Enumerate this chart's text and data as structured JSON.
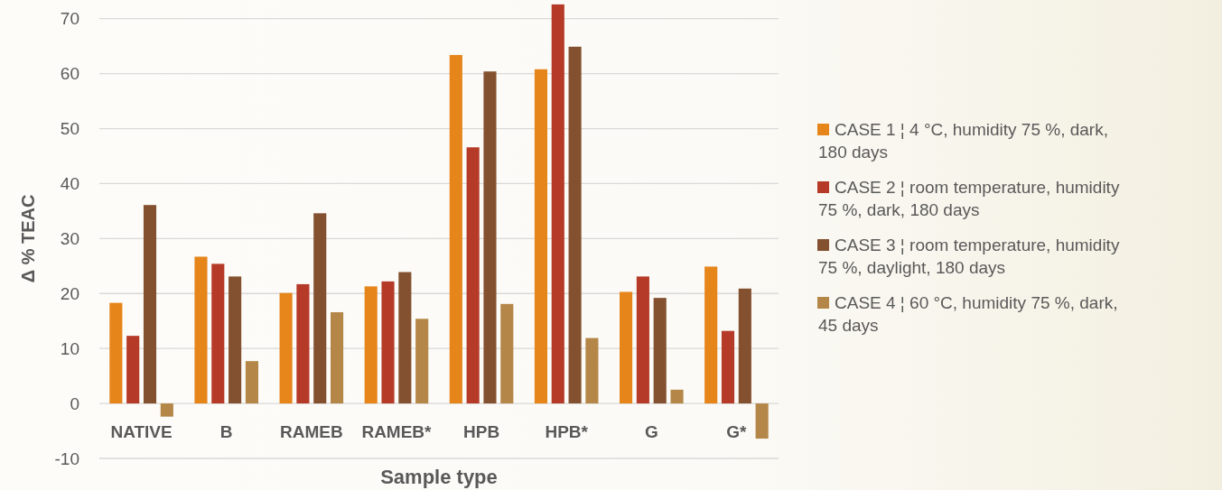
{
  "chart_data": {
    "type": "bar",
    "xlabel": "Sample type",
    "ylabel": "Δ % TEAC",
    "categories": [
      "NATIVE",
      "B",
      "RAMEB",
      "RAMEB*",
      "HPB",
      "HPB*",
      "G",
      "G*"
    ],
    "series": [
      {
        "name": "CASE 1 ¦ 4 °C, humidity 75 %, dark, 180 days",
        "color": "#e6851a",
        "values": [
          18.3,
          26.7,
          20.1,
          21.3,
          63.4,
          60.8,
          20.3,
          24.9
        ]
      },
      {
        "name": "CASE 2 ¦ room temperature, humidity 75 %, dark, 180 days",
        "color": "#b53a28",
        "values": [
          12.3,
          25.4,
          21.7,
          22.2,
          46.6,
          72.6,
          23.1,
          13.2
        ]
      },
      {
        "name": "CASE 3 ¦ room temperature, humidity 75 %, daylight, 180 days",
        "color": "#845130",
        "values": [
          36.1,
          23.1,
          34.6,
          23.9,
          60.4,
          64.9,
          19.2,
          20.9
        ]
      },
      {
        "name": "CASE 4 ¦ 60 °C, humidity 75 %, dark, 45 days",
        "color": "#b48748",
        "values": [
          -2.4,
          7.7,
          16.6,
          15.4,
          18.1,
          11.9,
          2.5,
          -6.4
        ]
      }
    ],
    "ylim": [
      -10,
      73.4
    ],
    "yticks": [
      -10,
      0,
      10,
      20,
      30,
      40,
      50,
      60,
      70
    ],
    "grid": "y",
    "legend": "right"
  }
}
